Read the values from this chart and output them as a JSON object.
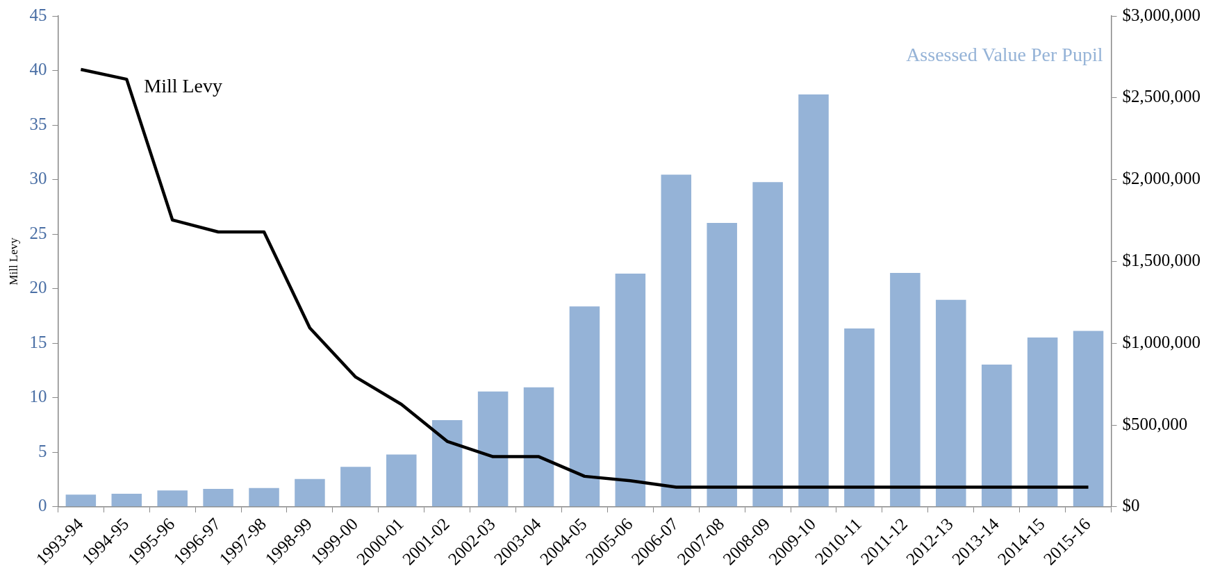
{
  "chart_data": {
    "type": "bar",
    "ylabel": "Mill Levy",
    "categories": [
      "1993-94",
      "1994-95",
      "1995-96",
      "1996-97",
      "1997-98",
      "1998-99",
      "1999-00",
      "2000-01",
      "2001-02",
      "2002-03",
      "2003-04",
      "2004-05",
      "2005-06",
      "2006-07",
      "2007-08",
      "2008-09",
      "2009-10",
      "2010-11",
      "2011-12",
      "2012-13",
      "2013-14",
      "2014-15",
      "2015-16"
    ],
    "series": [
      {
        "name": "Assessed Value Per Pupil",
        "axis": "y2",
        "color": "#95b3d7",
        "values": [
          75000,
          80000,
          100000,
          110000,
          115000,
          170000,
          245000,
          320000,
          530000,
          705000,
          730000,
          1225000,
          1425000,
          2030000,
          1735000,
          1985000,
          2520000,
          1090000,
          1430000,
          1265000,
          870000,
          1035000,
          1075000
        ]
      },
      {
        "name": "Mill Levy",
        "type": "line",
        "axis": "y",
        "color": "#000000",
        "values": [
          40.1,
          39.2,
          26.3,
          25.2,
          25.2,
          16.4,
          11.9,
          9.4,
          6.0,
          4.6,
          4.6,
          2.8,
          2.4,
          1.8,
          1.8,
          1.8,
          1.8,
          1.8,
          1.8,
          1.8,
          1.8,
          1.8,
          1.8
        ]
      }
    ],
    "ylim": [
      0,
      45
    ],
    "yticks": [
      0,
      5,
      10,
      15,
      20,
      25,
      30,
      35,
      40,
      45
    ],
    "y2lim": [
      0,
      3000000
    ],
    "y2ticks": [
      {
        "value": 0,
        "label": "$0"
      },
      {
        "value": 500000,
        "label": "$500,000"
      },
      {
        "value": 1000000,
        "label": "$1,000,000"
      },
      {
        "value": 1500000,
        "label": "$1,500,000"
      },
      {
        "value": 2000000,
        "label": "$2,000,000"
      },
      {
        "value": 2500000,
        "label": "$2,500,000"
      },
      {
        "value": 3000000,
        "label": "$3,000,000"
      }
    ],
    "grid": false,
    "legend": false,
    "marker": "none",
    "line_style": "solid"
  }
}
